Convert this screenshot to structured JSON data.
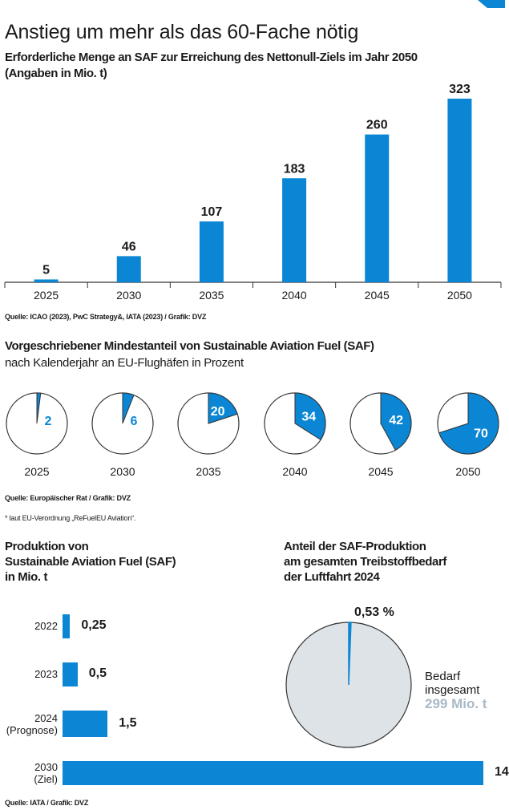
{
  "title": "Anstieg um mehr als das 60-Fache nötig",
  "colors": {
    "accent": "#0a86d4",
    "ring": "#333333",
    "light_gray": "#dde3e7",
    "gray_text": "#a9b9c6"
  },
  "section1": {
    "subtitle_line1": "Erforderliche Menge an SAF zur Erreichung des Nettonull-Ziels im Jahr 2050",
    "subtitle_line2": "(Angaben in Mio. t)",
    "source": "Quelle: ICAO (2023), PwC Strategy&, IATA (2023) / Grafik: DVZ"
  },
  "section2": {
    "title": "Vorgeschriebener Mindestanteil von Sustainable Aviation Fuel (SAF)",
    "subtitle": "nach Kalenderjahr an EU-Flughäfen in Prozent",
    "source": "Quelle: Europäischer Rat / Grafik: DVZ",
    "footnote": "* laut EU-Verordnung „ReFuelEU Aviation“."
  },
  "section3": {
    "title_line1": "Produktion von",
    "title_line2": "Sustainable Aviation Fuel (SAF)",
    "title_line3": "in Mio. t",
    "source": "Quelle: IATA / Grafik: DVZ"
  },
  "section4": {
    "title_line1": "Anteil der SAF-Produktion",
    "title_line2": "am gesamten Treibstoffbedarf",
    "title_line3": "der Luftfahrt 2024",
    "legend_line1": "Bedarf",
    "legend_line2": "insgesamt",
    "legend_value": "299 Mio. t"
  },
  "chart_data": [
    {
      "type": "bar",
      "categories": [
        "2025",
        "2030",
        "2035",
        "2040",
        "2045",
        "2050"
      ],
      "values": [
        5,
        46,
        107,
        183,
        260,
        323
      ],
      "data_labels": [
        "5",
        "46",
        "107",
        "183",
        "260",
        "323"
      ],
      "ylim": [
        0,
        340
      ]
    },
    {
      "type": "pie",
      "categories": [
        "2025",
        "2030",
        "2035",
        "2040",
        "2045",
        "2050"
      ],
      "values": [
        2,
        6,
        20,
        34,
        42,
        70
      ],
      "data_labels": [
        "2",
        "6",
        "20",
        "34",
        "42",
        "70"
      ]
    },
    {
      "type": "bar",
      "orientation": "horizontal",
      "categories": [
        "2022",
        "2023",
        "2024\n(Prognose)",
        "2030\n(Ziel)"
      ],
      "values": [
        0.25,
        0.5,
        1.5,
        14
      ],
      "data_labels": [
        "0,25",
        "0,5",
        "1,5",
        "14"
      ]
    },
    {
      "type": "pie",
      "values": [
        0.53,
        99.47
      ],
      "data_labels": [
        "0,53 %"
      ]
    }
  ]
}
